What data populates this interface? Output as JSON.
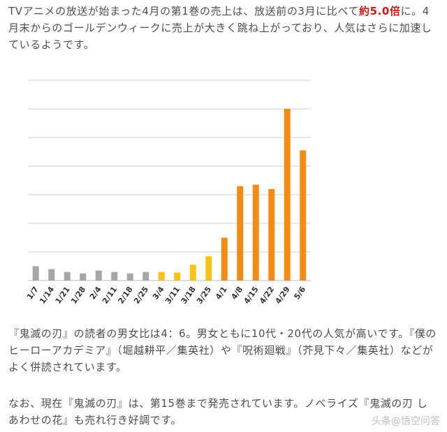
{
  "paragraph1": {
    "pre": "TVアニメの放送が始まった4月の第1巻の売上は、放送前の3月に比べて",
    "emph1": "約5.0",
    "emph2": "倍",
    "post": "に。4月末からのゴールデンウィークに売上が大きく跳ね上がっており、人気はさらに加速しているようです。"
  },
  "paragraph2": "『鬼滅の刃』の読者の男女比は4：6。男女ともに10代・20代の人気が高いです。『僕のヒーローアカデミア』（堀越耕平／集英社）や『呪術廻戦』（芥見下々／集英社）などがよく併読されています。",
  "paragraph3": "なお、現在『鬼滅の刃』は、第15巻まで発売されています。ノベライズ『鬼滅の刃 しあわせの花』も売れ行き好調です。",
  "watermark": "头条@悟空问答",
  "chart_data": {
    "type": "bar",
    "title": "",
    "xlabel": "",
    "ylabel": "",
    "grid": true,
    "gridlines": 7,
    "ylim": [
      0,
      7
    ],
    "categories": [
      "1/7",
      "1/14",
      "1/21",
      "1/28",
      "2/4",
      "2/11",
      "2/18",
      "2/25",
      "3/4",
      "3/11",
      "3/18",
      "3/25",
      "4/1",
      "4/8",
      "4/15",
      "4/22",
      "4/29",
      "5/6"
    ],
    "values": [
      0.5,
      0.4,
      0.3,
      0.25,
      0.35,
      0.3,
      0.25,
      0.3,
      0.3,
      0.28,
      0.55,
      0.85,
      1.5,
      3.3,
      3.35,
      3.2,
      6.0,
      4.55
    ],
    "colors": [
      "#a6a6a6",
      "#a6a6a6",
      "#a6a6a6",
      "#a6a6a6",
      "#a6a6a6",
      "#a6a6a6",
      "#a6a6a6",
      "#a6a6a6",
      "#f6c21b",
      "#f6c21b",
      "#f6c21b",
      "#f6c21b",
      "#f28c17",
      "#f28c17",
      "#f28c17",
      "#f28c17",
      "#f28c17",
      "#f28c17"
    ]
  }
}
